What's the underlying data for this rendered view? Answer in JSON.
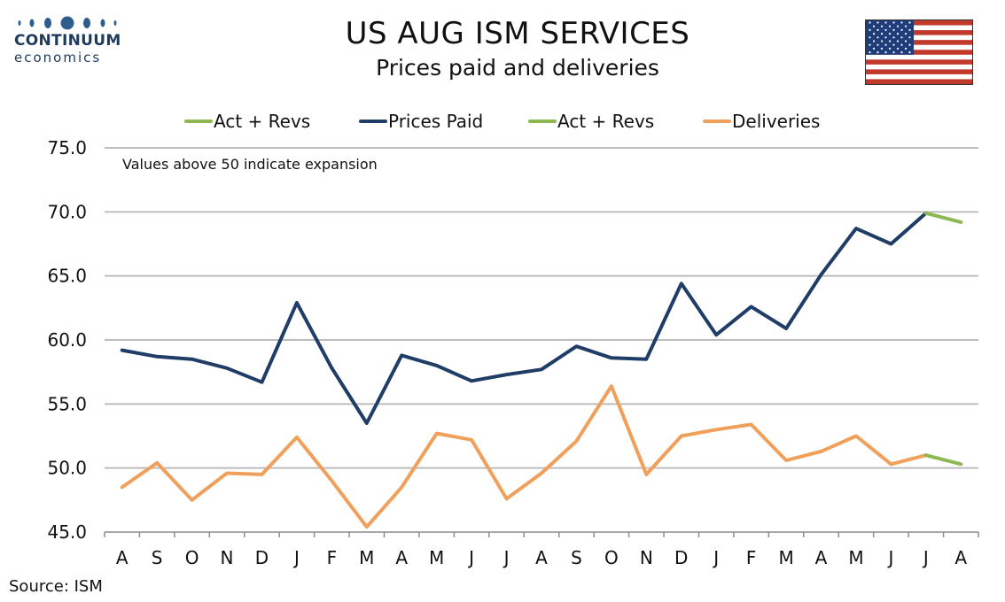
{
  "logo": {
    "word1": "CONTINUUM",
    "word2": "economics",
    "color": "#1e3a5c"
  },
  "header": {
    "title": "US AUG ISM SERVICES",
    "subtitle": "Prices paid and deliveries"
  },
  "flag": {
    "icon": "us-flag-icon"
  },
  "source": "Source: ISM",
  "chart_data": {
    "type": "line",
    "title": "US AUG ISM SERVICES",
    "subtitle": "Prices paid and deliveries",
    "annotation": "Values above 50 indicate expansion",
    "categories": [
      "A",
      "S",
      "O",
      "N",
      "D",
      "J",
      "F",
      "M",
      "A",
      "M",
      "J",
      "J",
      "A",
      "S",
      "O",
      "N",
      "D",
      "J",
      "F",
      "M",
      "A",
      "M",
      "J",
      "J",
      "A"
    ],
    "ylim": [
      45,
      75
    ],
    "yticks": [
      "45.0",
      "50.0",
      "55.0",
      "60.0",
      "65.0",
      "70.0",
      "75.0"
    ],
    "grid": true,
    "legend_placement": "top",
    "legend": [
      {
        "label": "Act + Revs",
        "color": "#8db852"
      },
      {
        "label": "Prices Paid",
        "color": "#1f3d66"
      },
      {
        "label": "Act + Revs",
        "color": "#8db852"
      },
      {
        "label": "Deliveries",
        "color": "#f0a05a"
      }
    ],
    "series": [
      {
        "name": "Prices Paid",
        "color": "#1f3d66",
        "values": [
          59.2,
          58.7,
          58.5,
          57.8,
          56.7,
          62.9,
          57.8,
          53.5,
          58.8,
          58.0,
          56.8,
          57.3,
          57.7,
          59.5,
          58.6,
          58.5,
          64.4,
          60.4,
          62.6,
          60.9,
          65.1,
          68.7,
          67.5,
          69.9,
          null
        ]
      },
      {
        "name": "Act + Revs",
        "color": "#8db852",
        "values": [
          null,
          null,
          null,
          null,
          null,
          null,
          null,
          null,
          null,
          null,
          null,
          null,
          null,
          null,
          null,
          null,
          null,
          null,
          null,
          null,
          null,
          null,
          null,
          69.9,
          69.2
        ]
      },
      {
        "name": "Deliveries",
        "color": "#f0a05a",
        "values": [
          48.5,
          50.4,
          47.5,
          49.6,
          49.5,
          52.4,
          49.0,
          45.4,
          48.5,
          52.7,
          52.2,
          47.6,
          49.6,
          52.1,
          56.4,
          49.5,
          52.5,
          53.0,
          53.4,
          50.6,
          51.3,
          52.5,
          50.3,
          51.0,
          null
        ]
      },
      {
        "name": "Act + Revs",
        "color": "#8db852",
        "values": [
          null,
          null,
          null,
          null,
          null,
          null,
          null,
          null,
          null,
          null,
          null,
          null,
          null,
          null,
          null,
          null,
          null,
          null,
          null,
          null,
          null,
          null,
          null,
          51.0,
          50.3
        ]
      }
    ]
  }
}
